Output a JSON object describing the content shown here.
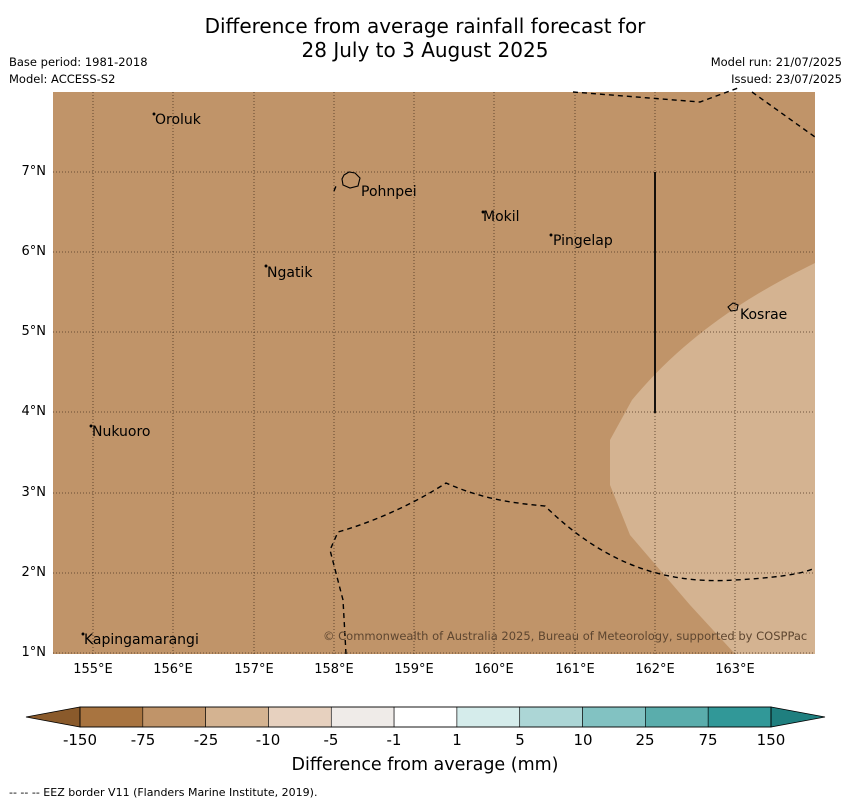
{
  "title": {
    "line1": "Difference from average rainfall forecast for",
    "line2": "28 July to 3 August 2025"
  },
  "meta": {
    "base_period": "Base period: 1981-2018",
    "model": "Model: ACCESS-S2",
    "model_run": "Model run: 21/07/2025",
    "issued": "Issued: 23/07/2025"
  },
  "axes": {
    "y_ticks": [
      "7°N",
      "6°N",
      "5°N",
      "4°N",
      "3°N",
      "2°N",
      "1°N"
    ],
    "x_ticks": [
      "155°E",
      "156°E",
      "157°E",
      "158°E",
      "159°E",
      "160°E",
      "161°E",
      "162°E",
      "163°E"
    ],
    "lat_range": [
      1,
      8
    ],
    "lon_range": [
      154.5,
      164
    ]
  },
  "places": [
    {
      "name": "Oroluk"
    },
    {
      "name": "Pohnpei"
    },
    {
      "name": "Mokil"
    },
    {
      "name": "Pingelap"
    },
    {
      "name": "Ngatik"
    },
    {
      "name": "Kosrae"
    },
    {
      "name": "Nukuoro"
    },
    {
      "name": "Kapingamarangi"
    }
  ],
  "copyright": "© Commonwealth of Australia 2025, Bureau of Meteorology, supported by COSPPac",
  "colorbar": {
    "ticks": [
      "-150",
      "-75",
      "-25",
      "-10",
      "-5",
      "-1",
      "1",
      "5",
      "10",
      "25",
      "75",
      "150"
    ],
    "colors": [
      "#a87440",
      "#c09469",
      "#d4b391",
      "#e7d1bf",
      "#efebe8",
      "#ffffff",
      "#d5eceb",
      "#acd6d6",
      "#82c2c2",
      "#5aadac",
      "#319898"
    ],
    "extend_low_color": "#8a5a2b",
    "extend_high_color": "#1f7f7f",
    "title": "Difference from average (mm)"
  },
  "colors": {
    "map_base": "#c09469",
    "map_light": "#d4b391",
    "grid": "#4a3320"
  },
  "footer": "--  --  -- EEZ border V11 (Flanders Marine Institute, 2019)."
}
